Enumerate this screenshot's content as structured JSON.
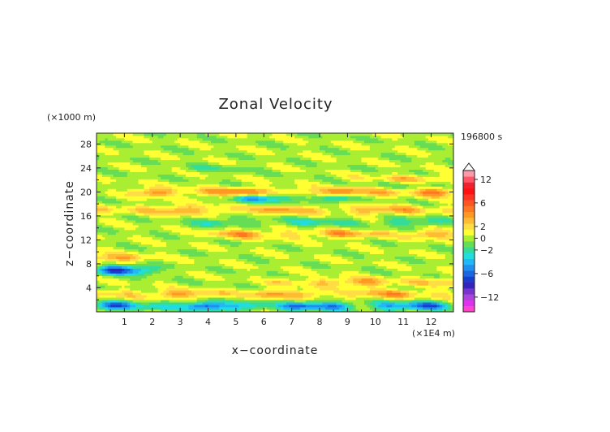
{
  "chart_data": {
    "type": "heatmap",
    "title": "Zonal Velocity",
    "xlabel": "x−coordinate",
    "ylabel": "z−coordinate",
    "x_unit": "(×1E4 m)",
    "y_unit": "(×1000 m)",
    "time_label": "196800 s",
    "xlim": [
      0,
      12.8
    ],
    "ylim": [
      0,
      29.8
    ],
    "x_ticks": [
      1,
      2,
      3,
      4,
      5,
      6,
      7,
      8,
      9,
      10,
      11,
      12
    ],
    "y_ticks": [
      4,
      8,
      12,
      16,
      20,
      24,
      28
    ],
    "colorbar": {
      "levels": [
        -16,
        -14,
        -12,
        -10,
        -8,
        -7,
        -6,
        -5,
        -4,
        -3,
        -2,
        -1,
        0,
        1,
        2,
        3,
        4,
        5,
        6,
        7,
        8,
        10,
        12,
        14,
        16
      ],
      "colors": [
        "#ff44cc",
        "#dd33ee",
        "#aa44dd",
        "#7733cc",
        "#3322bb",
        "#1a3ccc",
        "#1b66e0",
        "#1f8ff0",
        "#22b8f5",
        "#22dde0",
        "#33dd99",
        "#66dd55",
        "#aaee33",
        "#ffff33",
        "#ffdd44",
        "#ffbb33",
        "#ff9922",
        "#ff7722",
        "#ff5522",
        "#ff3322",
        "#ff1111",
        "#ee2233",
        "#ff5566",
        "#ff99aa"
      ],
      "tick_labels": [
        "12",
        "6",
        "2",
        "0",
        "−2",
        "−6",
        "−12"
      ],
      "tick_values": [
        12,
        6,
        2,
        0,
        -2,
        -6,
        -12
      ],
      "extend": "max"
    },
    "field": {
      "description_bands": [
        {
          "z": 1.0,
          "u": -5,
          "x_from": 0,
          "x_to": 12.8
        },
        {
          "z": 3.0,
          "u": 3,
          "x_from": 0,
          "x_to": 12.8
        },
        {
          "z": 5.0,
          "u": 3,
          "x_from": 6.5,
          "x_to": 12.8
        },
        {
          "z": 7.0,
          "u": -6,
          "x_from": 0,
          "x_to": 2
        },
        {
          "z": 9.0,
          "u": 4,
          "x_from": 0,
          "x_to": 2
        },
        {
          "z": 13.0,
          "u": 3,
          "x_from": 4,
          "x_to": 12.8
        },
        {
          "z": 15.0,
          "u": -2,
          "x_from": 3.5,
          "x_to": 12.8
        },
        {
          "z": 17.0,
          "u": 3,
          "x_from": 0,
          "x_to": 12.8
        },
        {
          "z": 19.0,
          "u": -4,
          "x_from": 5,
          "x_to": 9
        },
        {
          "z": 20.0,
          "u": 4,
          "x_from": 1.5,
          "x_to": 12.8
        },
        {
          "z": 21.5,
          "u": -2,
          "x_from": 9,
          "x_to": 12.8
        },
        {
          "z": 22.0,
          "u": 3,
          "x_from": 9,
          "x_to": 12.8
        },
        {
          "z": 24.0,
          "u": -2,
          "x_from": 3.5,
          "x_to": 5.5
        }
      ]
    }
  }
}
